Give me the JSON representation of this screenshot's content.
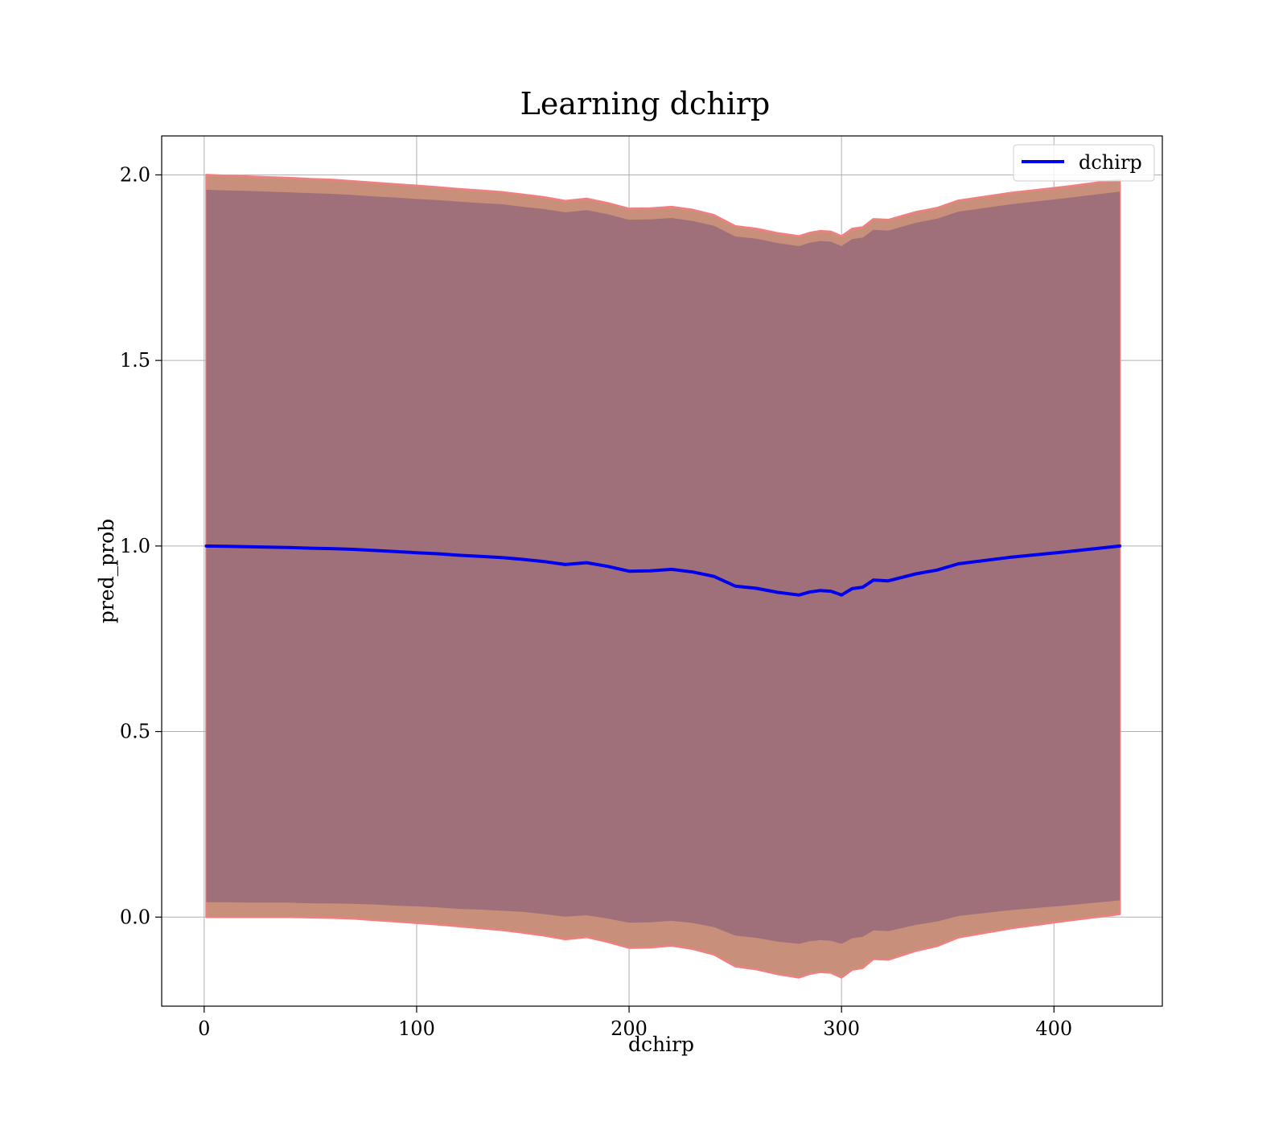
{
  "chart_data": {
    "type": "line",
    "title": "Learning dchirp",
    "xlabel": "dchirp",
    "ylabel": "pred_prob",
    "xlim": [
      -20,
      451
    ],
    "ylim": [
      -0.24,
      2.105
    ],
    "xticks": [
      0,
      100,
      200,
      300,
      400
    ],
    "yticks": [
      0.0,
      0.5,
      1.0,
      1.5,
      2.0
    ],
    "xtick_labels": [
      "0",
      "100",
      "200",
      "300",
      "400"
    ],
    "ytick_labels": [
      "0.0",
      "0.5",
      "1.0",
      "1.5",
      "2.0"
    ],
    "grid": true,
    "legend": {
      "position": "top-right",
      "entries": [
        "dchirp"
      ]
    },
    "colors": {
      "line": "#0000ee",
      "outer_band": "#c8907a",
      "outer_band_edge": "#f08080",
      "inner_band": "#a0707a",
      "grid": "#b0b0b0"
    },
    "x": [
      1,
      10,
      20,
      30,
      40,
      50,
      60,
      70,
      80,
      90,
      100,
      110,
      120,
      130,
      140,
      150,
      160,
      170,
      180,
      190,
      200,
      210,
      220,
      230,
      240,
      250,
      260,
      270,
      280,
      285,
      290,
      295,
      300,
      305,
      310,
      315,
      322,
      335,
      345,
      355,
      380,
      405,
      431
    ],
    "series": [
      {
        "name": "dchirp",
        "values": [
          1.0,
          0.999,
          0.998,
          0.997,
          0.996,
          0.994,
          0.993,
          0.991,
          0.988,
          0.985,
          0.982,
          0.979,
          0.975,
          0.972,
          0.969,
          0.964,
          0.958,
          0.95,
          0.955,
          0.945,
          0.932,
          0.933,
          0.937,
          0.93,
          0.918,
          0.892,
          0.886,
          0.875,
          0.868,
          0.876,
          0.88,
          0.878,
          0.868,
          0.885,
          0.889,
          0.908,
          0.906,
          0.925,
          0.935,
          0.952,
          0.97,
          0.984,
          1.0
        ]
      }
    ],
    "outer_band_upper": [
      2.0,
      1.998,
      1.996,
      1.994,
      1.992,
      1.989,
      1.987,
      1.983,
      1.979,
      1.975,
      1.971,
      1.967,
      1.962,
      1.958,
      1.954,
      1.947,
      1.94,
      1.93,
      1.936,
      1.924,
      1.909,
      1.91,
      1.914,
      1.906,
      1.892,
      1.862,
      1.855,
      1.843,
      1.835,
      1.844,
      1.849,
      1.847,
      1.835,
      1.855,
      1.859,
      1.881,
      1.879,
      1.9,
      1.911,
      1.931,
      1.952,
      1.968,
      1.987
    ],
    "outer_band_lower": [
      0.0,
      0.0,
      0.0,
      0.0,
      0.0,
      -0.001,
      -0.002,
      -0.004,
      -0.008,
      -0.012,
      -0.016,
      -0.02,
      -0.025,
      -0.03,
      -0.035,
      -0.042,
      -0.05,
      -0.06,
      -0.054,
      -0.067,
      -0.083,
      -0.082,
      -0.077,
      -0.086,
      -0.101,
      -0.133,
      -0.141,
      -0.154,
      -0.163,
      -0.153,
      -0.148,
      -0.15,
      -0.163,
      -0.142,
      -0.137,
      -0.113,
      -0.115,
      -0.091,
      -0.078,
      -0.055,
      -0.03,
      -0.011,
      0.008
    ],
    "inner_band_upper": [
      1.96,
      1.958,
      1.957,
      1.955,
      1.953,
      1.951,
      1.949,
      1.946,
      1.942,
      1.939,
      1.935,
      1.932,
      1.928,
      1.924,
      1.921,
      1.914,
      1.908,
      1.899,
      1.905,
      1.894,
      1.879,
      1.88,
      1.884,
      1.876,
      1.863,
      1.834,
      1.828,
      1.816,
      1.808,
      1.817,
      1.822,
      1.82,
      1.808,
      1.827,
      1.831,
      1.852,
      1.85,
      1.871,
      1.882,
      1.901,
      1.921,
      1.937,
      1.955
    ],
    "inner_band_lower": [
      0.04,
      0.04,
      0.039,
      0.039,
      0.039,
      0.037,
      0.037,
      0.036,
      0.034,
      0.031,
      0.029,
      0.026,
      0.022,
      0.02,
      0.017,
      0.014,
      0.008,
      0.001,
      0.005,
      -0.004,
      -0.015,
      -0.014,
      -0.01,
      -0.016,
      -0.027,
      -0.05,
      -0.056,
      -0.066,
      -0.072,
      -0.065,
      -0.062,
      -0.064,
      -0.072,
      -0.057,
      -0.053,
      -0.036,
      -0.038,
      -0.021,
      -0.012,
      0.003,
      0.019,
      0.031,
      0.045
    ]
  }
}
